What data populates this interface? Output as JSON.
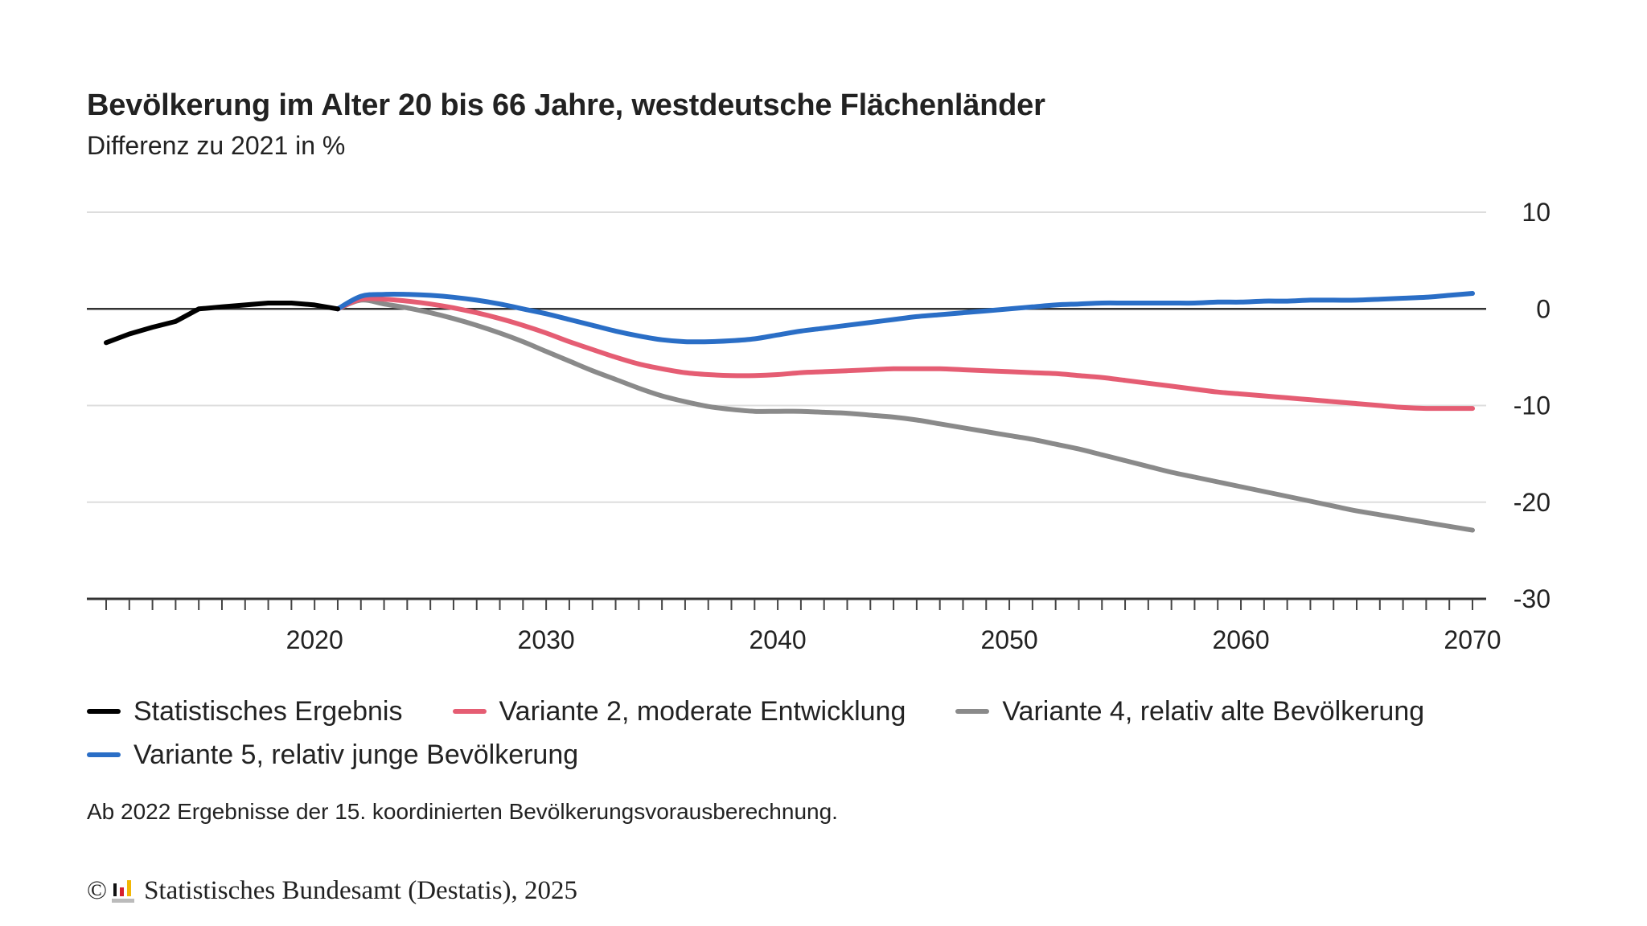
{
  "chart_data": {
    "type": "line",
    "title": "Bevölkerung im Alter 20 bis 66 Jahre, westdeutsche Flächenländer",
    "subtitle": "Differenz zu 2021 in %",
    "xlabel": "",
    "ylabel": "",
    "xlim": [
      2011,
      2070
    ],
    "ylim": [
      -30,
      10
    ],
    "x_ticks": [
      2020,
      2030,
      2040,
      2050,
      2060,
      2070
    ],
    "x_tick_labels": [
      "2020",
      "2030",
      "2040",
      "2050",
      "2060",
      "2070"
    ],
    "y_ticks": [
      10,
      0,
      -10,
      -20,
      -30
    ],
    "y_tick_labels": [
      "10",
      "0",
      "-10",
      "-20",
      "-30"
    ],
    "y_axis_side": "right",
    "grid": true,
    "legend_position": "bottom",
    "series": [
      {
        "name": "Statistisches Ergebnis",
        "color": "#000000",
        "x": [
          2011,
          2012,
          2013,
          2014,
          2015,
          2016,
          2017,
          2018,
          2019,
          2020,
          2021
        ],
        "values": [
          -3.5,
          -2.6,
          -1.9,
          -1.3,
          0.0,
          0.2,
          0.4,
          0.6,
          0.6,
          0.4,
          0.0
        ]
      },
      {
        "name": "Variante 2, moderate Entwicklung",
        "color": "#E55D73",
        "x": [
          2021,
          2022,
          2023,
          2024,
          2025,
          2026,
          2027,
          2028,
          2029,
          2030,
          2031,
          2032,
          2033,
          2034,
          2035,
          2036,
          2037,
          2038,
          2039,
          2040,
          2041,
          2042,
          2043,
          2044,
          2045,
          2046,
          2047,
          2048,
          2049,
          2050,
          2051,
          2052,
          2053,
          2054,
          2055,
          2056,
          2057,
          2058,
          2059,
          2060,
          2061,
          2062,
          2063,
          2064,
          2065,
          2066,
          2067,
          2068,
          2069,
          2070
        ],
        "values": [
          0,
          1.0,
          1.0,
          0.8,
          0.5,
          0.1,
          -0.4,
          -1.0,
          -1.7,
          -2.5,
          -3.4,
          -4.2,
          -5.0,
          -5.7,
          -6.2,
          -6.6,
          -6.8,
          -6.9,
          -6.9,
          -6.8,
          -6.6,
          -6.5,
          -6.4,
          -6.3,
          -6.2,
          -6.2,
          -6.2,
          -6.3,
          -6.4,
          -6.5,
          -6.6,
          -6.7,
          -6.9,
          -7.1,
          -7.4,
          -7.7,
          -8.0,
          -8.3,
          -8.6,
          -8.8,
          -9.0,
          -9.2,
          -9.4,
          -9.6,
          -9.8,
          -10.0,
          -10.2,
          -10.3,
          -10.3,
          -10.3
        ]
      },
      {
        "name": "Variante 4, relativ alte Bevölkerung",
        "color": "#8A8A8A",
        "x": [
          2021,
          2022,
          2023,
          2024,
          2025,
          2026,
          2027,
          2028,
          2029,
          2030,
          2031,
          2032,
          2033,
          2034,
          2035,
          2036,
          2037,
          2038,
          2039,
          2040,
          2041,
          2042,
          2043,
          2044,
          2045,
          2046,
          2047,
          2048,
          2049,
          2050,
          2051,
          2052,
          2053,
          2054,
          2055,
          2056,
          2057,
          2058,
          2059,
          2060,
          2061,
          2062,
          2063,
          2064,
          2065,
          2066,
          2067,
          2068,
          2069,
          2070
        ],
        "values": [
          0,
          0.9,
          0.5,
          0.1,
          -0.4,
          -1.0,
          -1.7,
          -2.5,
          -3.4,
          -4.4,
          -5.4,
          -6.4,
          -7.3,
          -8.2,
          -9.0,
          -9.6,
          -10.1,
          -10.4,
          -10.6,
          -10.6,
          -10.6,
          -10.7,
          -10.8,
          -11.0,
          -11.2,
          -11.5,
          -11.9,
          -12.3,
          -12.7,
          -13.1,
          -13.5,
          -14.0,
          -14.5,
          -15.1,
          -15.7,
          -16.3,
          -16.9,
          -17.4,
          -17.9,
          -18.4,
          -18.9,
          -19.4,
          -19.9,
          -20.4,
          -20.9,
          -21.3,
          -21.7,
          -22.1,
          -22.5,
          -22.9
        ]
      },
      {
        "name": "Variante 5, relativ junge Bevölkerung",
        "color": "#2A6EC6",
        "x": [
          2021,
          2022,
          2023,
          2024,
          2025,
          2026,
          2027,
          2028,
          2029,
          2030,
          2031,
          2032,
          2033,
          2034,
          2035,
          2036,
          2037,
          2038,
          2039,
          2040,
          2041,
          2042,
          2043,
          2044,
          2045,
          2046,
          2047,
          2048,
          2049,
          2050,
          2051,
          2052,
          2053,
          2054,
          2055,
          2056,
          2057,
          2058,
          2059,
          2060,
          2061,
          2062,
          2063,
          2064,
          2065,
          2066,
          2067,
          2068,
          2069,
          2070
        ],
        "values": [
          0,
          1.3,
          1.5,
          1.5,
          1.4,
          1.2,
          0.9,
          0.5,
          0.0,
          -0.5,
          -1.1,
          -1.7,
          -2.3,
          -2.8,
          -3.2,
          -3.4,
          -3.4,
          -3.3,
          -3.1,
          -2.7,
          -2.3,
          -2.0,
          -1.7,
          -1.4,
          -1.1,
          -0.8,
          -0.6,
          -0.4,
          -0.2,
          0.0,
          0.2,
          0.4,
          0.5,
          0.6,
          0.6,
          0.6,
          0.6,
          0.6,
          0.7,
          0.7,
          0.8,
          0.8,
          0.9,
          0.9,
          0.9,
          1.0,
          1.1,
          1.2,
          1.4,
          1.6
        ]
      }
    ],
    "annotations": [
      "Ab 2022 Ergebnisse der 15. koordinierten Bevölkerungsvorausberechnung."
    ]
  },
  "footnote": "Ab 2022 Ergebnisse der 15. koordinierten Bevölkerungsvorausberechnung.",
  "credit": {
    "copyright_symbol": "©",
    "logo_icon": "destatis-logo-icon",
    "text": "Statistisches Bundesamt (Destatis), 2025"
  }
}
